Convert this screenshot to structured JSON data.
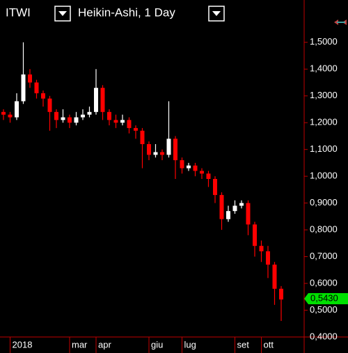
{
  "chart_data": {
    "type": "candlestick",
    "symbol": "ITWI",
    "title": "Heikin-Ashi, 1 Day",
    "up_color": "#ffffff",
    "down_color": "#ff0000",
    "categories": [
      null,
      "2018",
      null,
      null,
      null,
      null,
      null,
      null,
      null,
      null,
      "mar",
      null,
      null,
      null,
      "apr",
      null,
      null,
      null,
      null,
      null,
      null,
      null,
      "giu",
      null,
      null,
      null,
      null,
      "lug",
      null,
      null,
      null,
      null,
      null,
      null,
      null,
      "set",
      null,
      null,
      null,
      "ott",
      null,
      null,
      null
    ],
    "open": [
      1.24,
      1.23,
      1.22,
      1.28,
      1.38,
      1.35,
      1.31,
      1.29,
      1.24,
      1.21,
      1.22,
      1.2,
      1.22,
      1.23,
      1.24,
      1.33,
      1.24,
      1.21,
      1.2,
      1.21,
      1.18,
      1.17,
      1.12,
      1.08,
      1.09,
      1.08,
      1.14,
      1.06,
      1.03,
      1.04,
      1.02,
      1.01,
      0.99,
      0.93,
      0.84,
      0.87,
      0.89,
      0.9,
      0.82,
      0.74,
      0.72,
      0.67,
      0.58
    ],
    "high": [
      1.25,
      1.24,
      1.31,
      1.5,
      1.4,
      1.36,
      1.32,
      1.3,
      1.25,
      1.25,
      1.23,
      1.24,
      1.25,
      1.26,
      1.4,
      1.34,
      1.25,
      1.23,
      1.23,
      1.22,
      1.19,
      1.18,
      1.13,
      1.12,
      1.1,
      1.28,
      1.15,
      1.07,
      1.05,
      1.05,
      1.03,
      1.02,
      1.0,
      0.94,
      0.89,
      0.91,
      0.91,
      0.91,
      0.83,
      0.76,
      0.74,
      0.68,
      0.59
    ],
    "low": [
      1.21,
      1.2,
      1.21,
      1.27,
      1.33,
      1.29,
      1.26,
      1.17,
      1.18,
      1.2,
      1.18,
      1.19,
      1.21,
      1.22,
      1.23,
      1.21,
      1.19,
      1.18,
      1.19,
      1.16,
      1.14,
      1.03,
      1.06,
      1.07,
      1.06,
      1.07,
      0.99,
      1.01,
      1.02,
      1.0,
      0.99,
      0.96,
      0.9,
      0.8,
      0.83,
      0.86,
      0.88,
      0.78,
      0.7,
      0.68,
      0.62,
      0.52,
      0.46
    ],
    "close": [
      1.23,
      1.22,
      1.28,
      1.38,
      1.35,
      1.31,
      1.29,
      1.24,
      1.21,
      1.22,
      1.2,
      1.22,
      1.23,
      1.24,
      1.33,
      1.24,
      1.21,
      1.2,
      1.21,
      1.18,
      1.17,
      1.12,
      1.08,
      1.09,
      1.08,
      1.14,
      1.06,
      1.03,
      1.04,
      1.02,
      1.01,
      0.99,
      0.93,
      0.84,
      0.87,
      0.89,
      0.9,
      0.82,
      0.74,
      0.72,
      0.67,
      0.58,
      0.54
    ],
    "ylim": [
      0.4,
      1.58
    ],
    "yticks": [
      {
        "value": 0.4,
        "label": "0,4000"
      },
      {
        "value": 0.5,
        "label": "0,5000"
      },
      {
        "value": 0.6,
        "label": "0,6000"
      },
      {
        "value": 0.7,
        "label": "0,7000"
      },
      {
        "value": 0.8,
        "label": "0,8000"
      },
      {
        "value": 0.9,
        "label": "0,9000"
      },
      {
        "value": 1.0,
        "label": "1,0000"
      },
      {
        "value": 1.1,
        "label": "1,1000"
      },
      {
        "value": 1.2,
        "label": "1,2000"
      },
      {
        "value": 1.3,
        "label": "1,3000"
      },
      {
        "value": 1.4,
        "label": "1,4000"
      },
      {
        "value": 1.5,
        "label": "1,5000"
      }
    ],
    "last_price": {
      "value": 0.543,
      "label": "0,5430"
    },
    "last_price_color": "#00e000"
  }
}
